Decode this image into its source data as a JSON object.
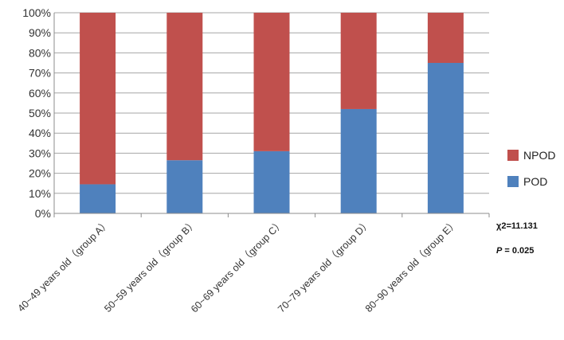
{
  "chart_data": {
    "type": "bar",
    "stacked": true,
    "categories": [
      "40~49 years old（group A）",
      "50~59 years old（group B）",
      "60~69 years old（group C）",
      "70~79 years old（group D）",
      "80~90 years old（group E）"
    ],
    "series": [
      {
        "name": "POD",
        "color": "#4F81BD",
        "values": [
          14.5,
          26.5,
          31,
          52,
          75
        ]
      },
      {
        "name": "NPOD",
        "color": "#C0504D",
        "values": [
          85.5,
          73.5,
          69,
          48,
          25
        ]
      }
    ],
    "yticks": [
      "0%",
      "10%",
      "20%",
      "30%",
      "40%",
      "50%",
      "60%",
      "70%",
      "80%",
      "90%",
      "100%"
    ],
    "ylim": [
      0,
      100
    ],
    "grid": true,
    "legend": {
      "position": "right",
      "order": [
        "NPOD",
        "POD"
      ]
    },
    "annotations": {
      "chi_square": "χ2=11.131",
      "p_label": "P",
      "p_value": " = 0.025"
    }
  }
}
